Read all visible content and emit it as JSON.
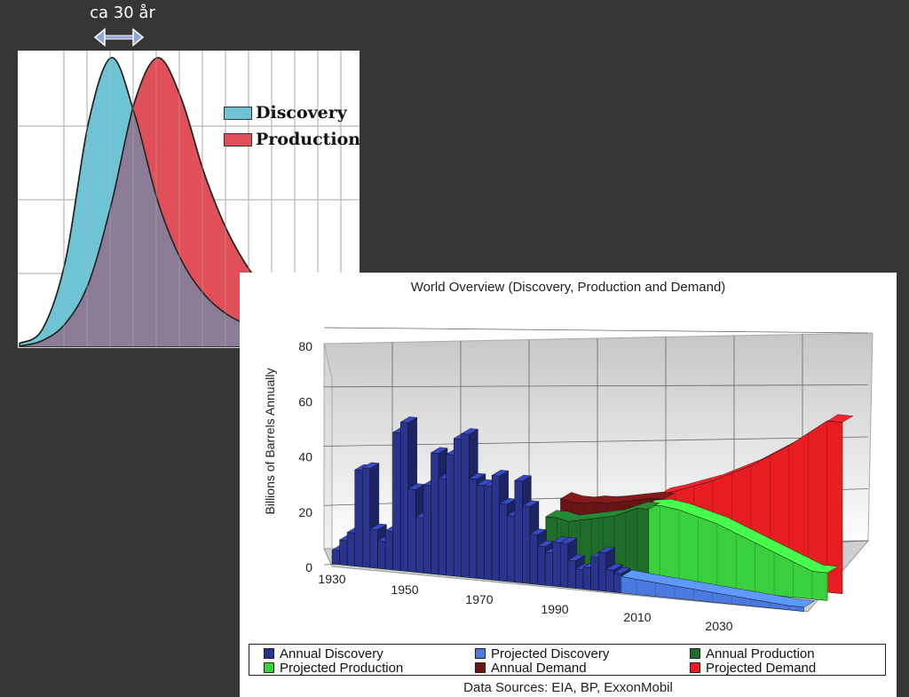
{
  "annotation": {
    "text": "ca 30 år"
  },
  "chart_data": [
    {
      "type": "area",
      "title": "",
      "legend": {
        "position": "right",
        "entries": [
          "Discovery",
          "Production"
        ]
      },
      "grid": true,
      "colors": {
        "Discovery": "#6ec4d4",
        "Production": "#e15058",
        "overlap": "#8c7c98"
      },
      "x": [
        0,
        1,
        2,
        3,
        4,
        5,
        6,
        7,
        8,
        9,
        10,
        11,
        12,
        13,
        14
      ],
      "series": [
        {
          "name": "Discovery",
          "values": [
            0.01,
            0.06,
            0.3,
            0.78,
            1.0,
            0.8,
            0.5,
            0.3,
            0.18,
            0.11,
            0.07,
            0.04,
            0.03,
            0.02,
            0.01
          ]
        },
        {
          "name": "Production",
          "values": [
            0.0,
            0.02,
            0.08,
            0.22,
            0.5,
            0.85,
            1.0,
            0.86,
            0.6,
            0.4,
            0.26,
            0.16,
            0.09,
            0.05,
            0.03
          ]
        }
      ]
    },
    {
      "type": "bar",
      "title": "World Overview (Discovery, Production and Demand)",
      "ylabel": "Billions of Barrels Annually",
      "xlabel": "",
      "ylim": [
        0,
        80
      ],
      "yticks": [
        0,
        20,
        40,
        60,
        80
      ],
      "xticks": [
        "1930",
        "1950",
        "1970",
        "1990",
        "2010",
        "2030"
      ],
      "grid": true,
      "legend": {
        "position": "bottom"
      },
      "series": [
        {
          "name": "Annual Discovery",
          "color": "#28348e",
          "x": [
            1930,
            1932,
            1934,
            1936,
            1938,
            1940,
            1942,
            1944,
            1946,
            1948,
            1950,
            1952,
            1954,
            1956,
            1958,
            1960,
            1962,
            1964,
            1966,
            1968,
            1970,
            1972,
            1974,
            1976,
            1978,
            1980,
            1982,
            1984,
            1986,
            1988,
            1990,
            1992,
            1994,
            1996,
            1998,
            2000,
            2002,
            2004
          ],
          "values": [
            5,
            9,
            12,
            35,
            36,
            14,
            10,
            14,
            50,
            54,
            30,
            20,
            32,
            44,
            35,
            44,
            50,
            52,
            36,
            34,
            34,
            38,
            28,
            24,
            37,
            28,
            18,
            14,
            12,
            16,
            16,
            10,
            7,
            8,
            12,
            14,
            8,
            7
          ]
        },
        {
          "name": "Projected Discovery",
          "color": "#4a7ae0",
          "x": [
            2006,
            2010,
            2015,
            2020,
            2025,
            2030,
            2035,
            2040,
            2045,
            2050
          ],
          "values": [
            6,
            5.5,
            5,
            4.5,
            4,
            3.5,
            3,
            2.5,
            2,
            1.5
          ]
        },
        {
          "name": "Annual Production",
          "color": "#1e6e2a",
          "x": [
            1980,
            1983,
            1986,
            1989,
            1992,
            1995,
            1998,
            2001,
            2004
          ],
          "values": [
            22,
            22,
            21,
            22,
            23,
            24,
            25,
            27,
            29
          ]
        },
        {
          "name": "Projected Production",
          "color": "#38d03c",
          "x": [
            2006,
            2010,
            2015,
            2020,
            2025,
            2030,
            2035,
            2040,
            2045,
            2050
          ],
          "values": [
            30,
            31,
            30,
            28,
            26,
            23,
            20,
            17,
            14,
            11
          ]
        },
        {
          "name": "Annual Demand",
          "color": "#6b1416",
          "x": [
            1980,
            1983,
            1986,
            1989,
            1992,
            1995,
            1998,
            2001,
            2004
          ],
          "values": [
            28,
            27,
            27,
            28,
            28,
            29,
            30,
            31,
            32
          ]
        },
        {
          "name": "Projected Demand",
          "color": "#e81d22",
          "x": [
            2006,
            2010,
            2015,
            2020,
            2025,
            2030,
            2035,
            2040,
            2045,
            2050
          ],
          "values": [
            34,
            36,
            39,
            42,
            46,
            50,
            55,
            60,
            66,
            72
          ]
        }
      ],
      "source": "Data Sources: EIA, BP, ExxonMobil"
    }
  ]
}
